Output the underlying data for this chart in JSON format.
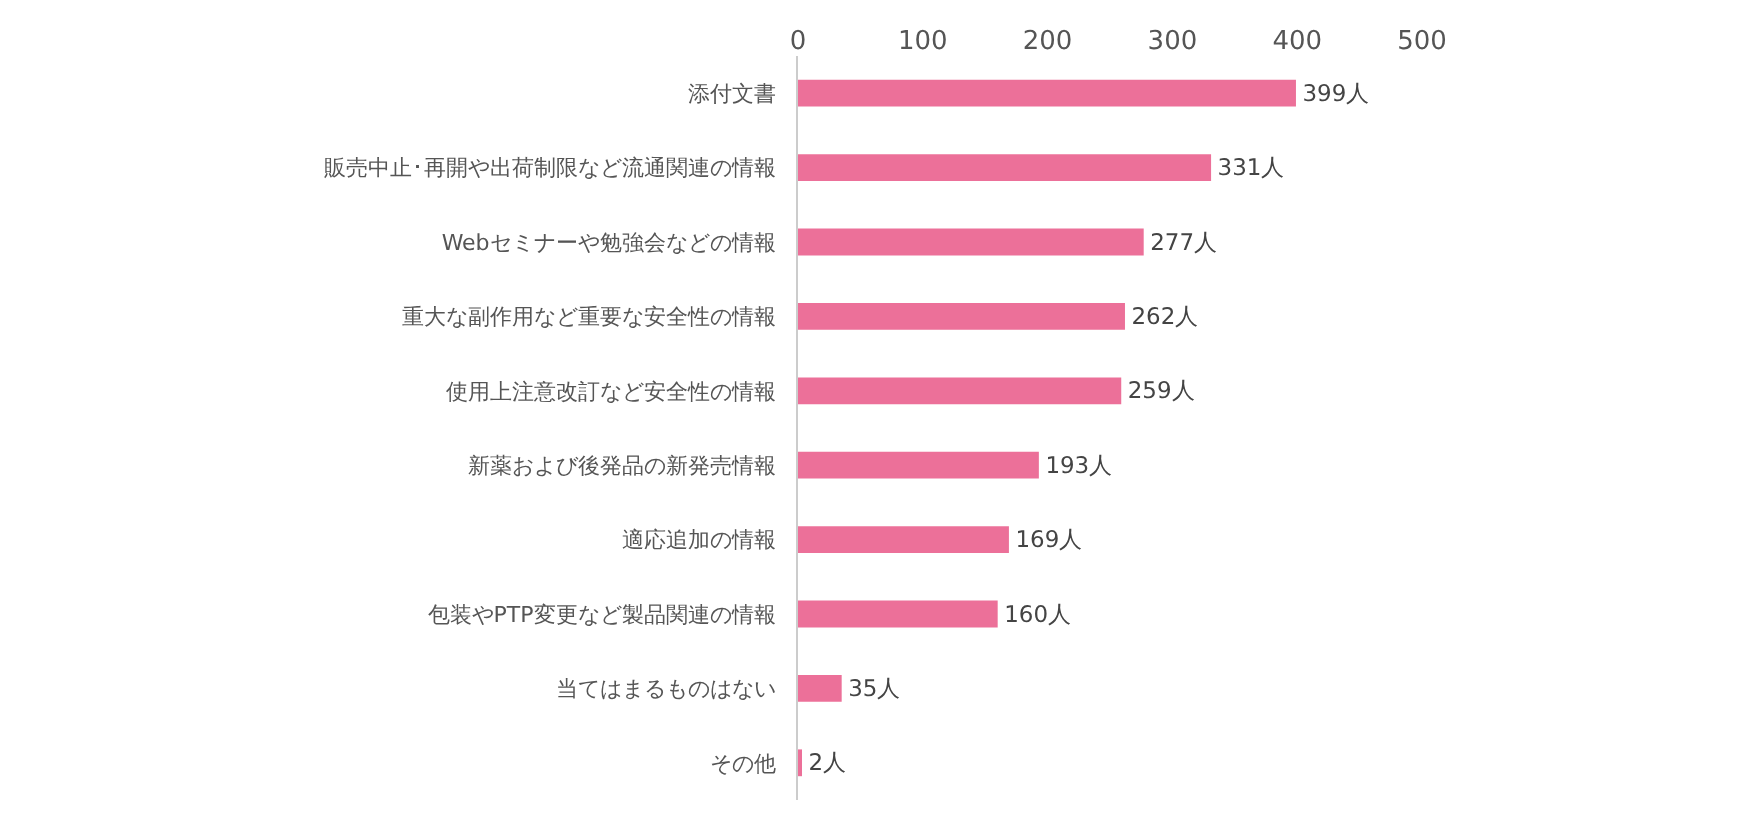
{
  "chart_data": {
    "type": "bar",
    "orientation": "horizontal",
    "categories": [
      "添付文書",
      "販売中止･再開や出荷制限など流通関連の情報",
      "Webセミナーや勉強会などの情報",
      "重大な副作用など重要な安全性の情報",
      "使用上注意改訂など安全性の情報",
      "新薬および後発品の新発売情報",
      "適応追加の情報",
      "包装やPTP変更など製品関連の情報",
      "当てはまるものはない",
      "その他"
    ],
    "values": [
      399,
      331,
      277,
      262,
      259,
      193,
      169,
      160,
      35,
      2
    ],
    "value_labels": [
      "399人",
      "331人",
      "277人",
      "262人",
      "259人",
      "193人",
      "169人",
      "160人",
      "35人",
      "2人"
    ],
    "color": "#ec7099",
    "xlim": [
      0,
      500
    ],
    "xticks": [
      0,
      100,
      200,
      300,
      400,
      500
    ],
    "legend": false
  }
}
